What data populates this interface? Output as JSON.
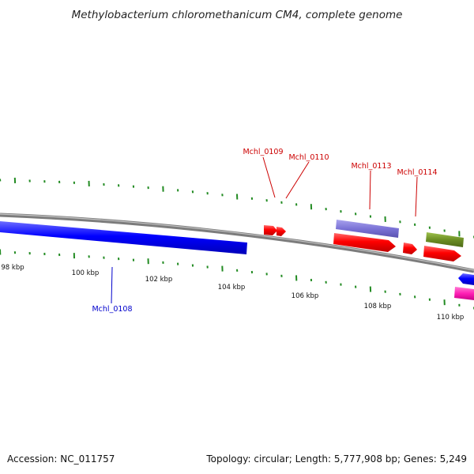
{
  "title": "Methylobacterium chloromethanicum CM4, complete genome",
  "footer": {
    "accession": "Accession: NC_011757",
    "summary": "Topology: circular; Length: 5,777,908 bp; Genes: 5,249"
  },
  "scale_labels": [
    "98 kbp",
    "100 kbp",
    "102 kbp",
    "104 kbp",
    "106 kbp",
    "108 kbp",
    "110 kbp"
  ],
  "gene_labels": [
    {
      "text": "Mchl_0108",
      "color": "#0000cc"
    },
    {
      "text": "Mchl_0109",
      "color": "#cc0000"
    },
    {
      "text": "Mchl_0110",
      "color": "#cc0000"
    },
    {
      "text": "Mchl_0113",
      "color": "#cc0000"
    },
    {
      "text": "Mchl_0114",
      "color": "#cc0000"
    }
  ],
  "colors": {
    "forward_cds": "#ff0000",
    "reverse_cds": "#0000ff",
    "purple_feature": "#7b73d6",
    "olive_feature": "#6b8e23",
    "magenta_feature": "#ff1fb4",
    "backbone": "#808080",
    "ticks": "#228b22"
  }
}
